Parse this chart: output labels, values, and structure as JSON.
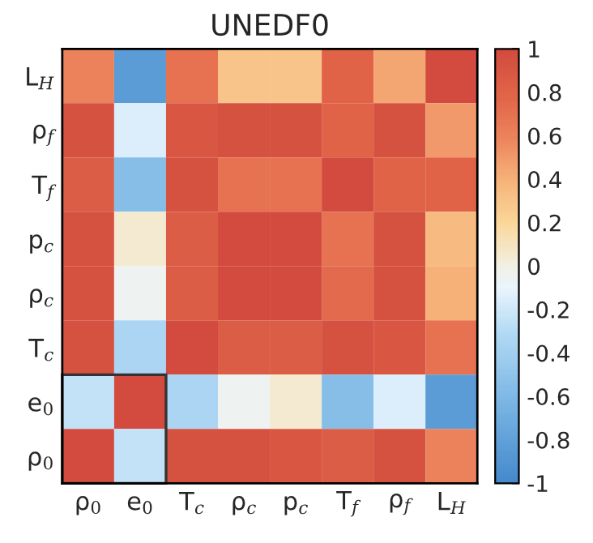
{
  "chart_data": {
    "type": "heatmap",
    "title": "UNEDF0",
    "categories": [
      "ρ$_{0}$",
      "e$_{0}$",
      "T$_{c}$",
      "ρ$_{c}$",
      "p$_{c}$",
      "T$_{f}$",
      "ρ$_{f}$",
      "L$_{H}$"
    ],
    "y_categories": [
      "L$_{H}$",
      "ρ$_{f}$",
      "T$_{f}$",
      "p$_{c}$",
      "ρ$_{c}$",
      "T$_{c}$",
      "e$_{0}$",
      "ρ$_{0}$"
    ],
    "cells": [
      [
        0.6,
        -0.85,
        0.7,
        0.3,
        0.3,
        0.8,
        0.45,
        1
      ],
      [
        0.95,
        -0.15,
        0.9,
        0.95,
        0.95,
        0.8,
        0.95,
        0.5
      ],
      [
        0.85,
        -0.55,
        0.95,
        0.7,
        0.7,
        1,
        0.8,
        0.8
      ],
      [
        0.95,
        0.05,
        0.85,
        1,
        1,
        0.7,
        0.95,
        0.35
      ],
      [
        0.95,
        -0.05,
        0.85,
        1,
        1,
        0.75,
        0.95,
        0.4
      ],
      [
        0.95,
        -0.35,
        1,
        0.85,
        0.85,
        0.95,
        0.9,
        0.7
      ],
      [
        -0.25,
        1,
        -0.35,
        -0.05,
        0.05,
        -0.55,
        -0.15,
        -0.85
      ],
      [
        1,
        -0.25,
        0.95,
        0.95,
        0.9,
        0.85,
        0.95,
        0.6
      ]
    ],
    "clim": [
      -1,
      1
    ],
    "cticks": [
      -1,
      -0.8,
      -0.6,
      -0.4,
      -0.2,
      0,
      0.2,
      0.4,
      0.6,
      0.8,
      1
    ]
  }
}
